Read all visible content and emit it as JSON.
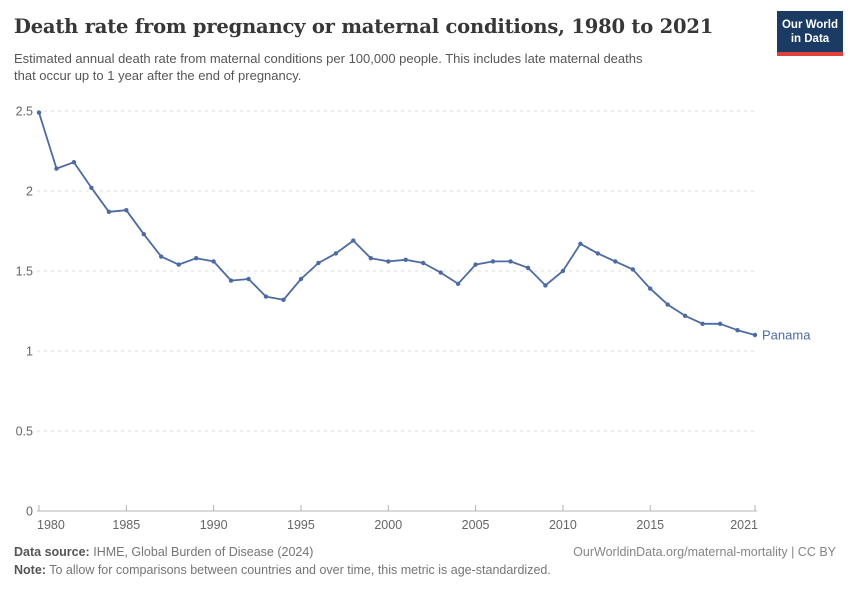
{
  "header": {
    "title": "Death rate from pregnancy or maternal conditions, 1980 to 2021",
    "subtitle_line1": "Estimated annual death rate from maternal conditions per 100,000 people. This includes late maternal deaths",
    "subtitle_line2": "that occur up to 1 year after the end of pregnancy.",
    "logo": {
      "line1": "Our World",
      "line2": "in Data"
    }
  },
  "colors": {
    "accent_line": "#4c6ba5",
    "logo_bg": "#1a3b64",
    "logo_red": "#e0413b",
    "grid": "#dcdcdc",
    "axis": "#b3b3b3",
    "tick_text": "#666666"
  },
  "chart_data": {
    "type": "line",
    "title": "Death rate from pregnancy or maternal conditions, 1980 to 2021",
    "xlabel": "",
    "ylabel": "Estimated annual death rate from maternal conditions per 100,000 people",
    "grid": "horizontal-dashed",
    "legend_position": "line-end-label",
    "xlim": [
      1980,
      2021
    ],
    "ylim": [
      0,
      2.5
    ],
    "x": [
      1980,
      1981,
      1982,
      1983,
      1984,
      1985,
      1986,
      1987,
      1988,
      1989,
      1990,
      1991,
      1992,
      1993,
      1994,
      1995,
      1996,
      1997,
      1998,
      1999,
      2000,
      2001,
      2002,
      2003,
      2004,
      2005,
      2006,
      2007,
      2008,
      2009,
      2010,
      2011,
      2012,
      2013,
      2014,
      2015,
      2016,
      2017,
      2018,
      2019,
      2020,
      2021
    ],
    "series": [
      {
        "name": "Panama",
        "color": "#4c6ba5",
        "values": [
          2.49,
          2.14,
          2.18,
          2.02,
          1.87,
          1.88,
          1.73,
          1.59,
          1.54,
          1.58,
          1.56,
          1.44,
          1.45,
          1.34,
          1.32,
          1.45,
          1.55,
          1.61,
          1.69,
          1.58,
          1.56,
          1.57,
          1.55,
          1.49,
          1.42,
          1.54,
          1.56,
          1.56,
          1.52,
          1.41,
          1.5,
          1.67,
          1.61,
          1.56,
          1.51,
          1.39,
          1.29,
          1.22,
          1.17,
          1.17,
          1.13,
          1.1
        ]
      }
    ],
    "xticks": {
      "values": [
        1980,
        1985,
        1990,
        1995,
        2000,
        2005,
        2010,
        2015,
        2021
      ],
      "labels": [
        "1980",
        "1985",
        "1990",
        "1995",
        "2000",
        "2005",
        "2010",
        "2015",
        "2021"
      ]
    },
    "yticks": {
      "values": [
        0,
        0.5,
        1,
        1.5,
        2,
        2.5
      ],
      "labels": [
        "0",
        "0.5",
        "1",
        "1.5",
        "2",
        "2.5"
      ]
    }
  },
  "footer": {
    "data_source_label": "Data source:",
    "data_source_value": "IHME, Global Burden of Disease (2024)",
    "link": "OurWorldinData.org/maternal-mortality | CC BY",
    "note_label": "Note:",
    "note_value": "To allow for comparisons between countries and over time, this metric is age-standardized."
  }
}
